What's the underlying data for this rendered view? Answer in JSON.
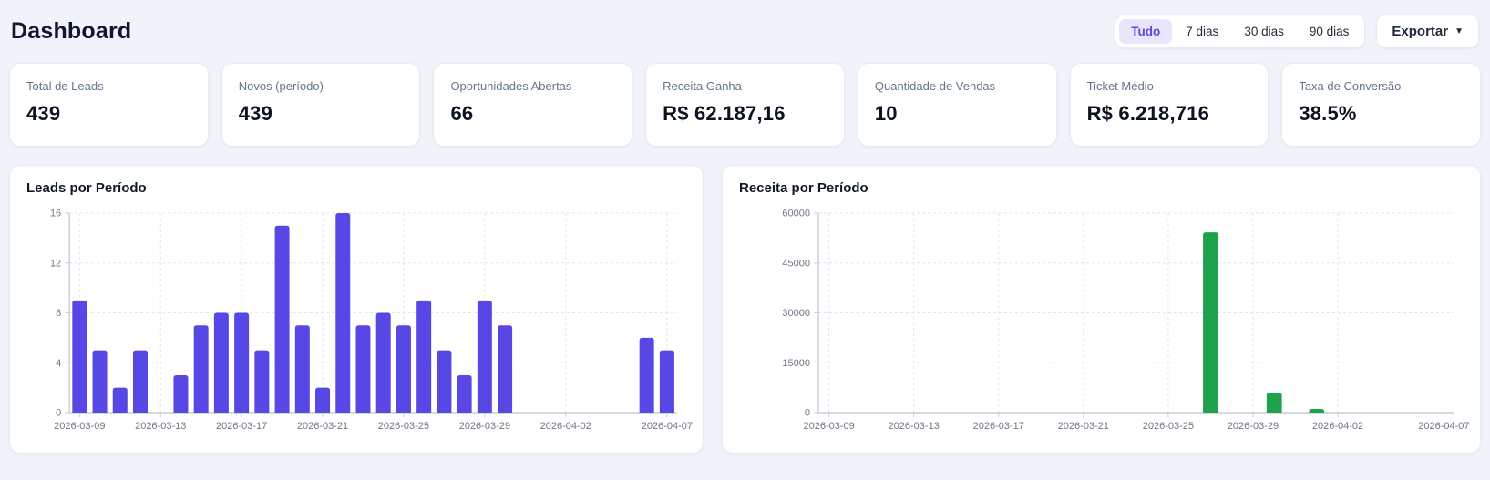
{
  "page": {
    "title": "Dashboard"
  },
  "header": {
    "filters": [
      {
        "label": "Tudo",
        "active": true
      },
      {
        "label": "7 dias",
        "active": false
      },
      {
        "label": "30 dias",
        "active": false
      },
      {
        "label": "90 dias",
        "active": false
      }
    ],
    "export_label": "Exportar",
    "caret_icon": "▼"
  },
  "stats": [
    {
      "label": "Total de Leads",
      "value": "439"
    },
    {
      "label": "Novos (período)",
      "value": "439"
    },
    {
      "label": "Oportunidades Abertas",
      "value": "66"
    },
    {
      "label": "Receita Ganha",
      "value": "R$ 62.187,16"
    },
    {
      "label": "Quantidade de Vendas",
      "value": "10"
    },
    {
      "label": "Ticket Médio",
      "value": "R$ 6.218,716"
    },
    {
      "label": "Taxa de Conversão",
      "value": "38.5%"
    }
  ],
  "colors": {
    "page_bg": "#f1f3fa",
    "accent_purple": "#5748e6",
    "accent_green": "#1fa24c",
    "active_pill_bg": "#e9e6fb",
    "active_pill_text": "#5a49e0",
    "grid_line": "#e1e5f0",
    "axis_line": "#c7cdd9",
    "axis_text": "#6e7687"
  },
  "chart_data": [
    {
      "type": "bar",
      "title": "Leads por Período",
      "categories": [
        "2026-03-09",
        "2026-03-10",
        "2026-03-11",
        "2026-03-12",
        "2026-03-13",
        "2026-03-14",
        "2026-03-15",
        "2026-03-16",
        "2026-03-17",
        "2026-03-18",
        "2026-03-19",
        "2026-03-20",
        "2026-03-21",
        "2026-03-22",
        "2026-03-23",
        "2026-03-24",
        "2026-03-25",
        "2026-03-26",
        "2026-03-27",
        "2026-03-28",
        "2026-03-29",
        "2026-03-30",
        "2026-03-31",
        "2026-04-01",
        "2026-04-02",
        "2026-04-03",
        "2026-04-04",
        "2026-04-05",
        "2026-04-06",
        "2026-04-07"
      ],
      "values": [
        9,
        5,
        2,
        5,
        0,
        3,
        7,
        8,
        8,
        5,
        15,
        7,
        2,
        16,
        7,
        8,
        7,
        9,
        5,
        3,
        9,
        7,
        0,
        0,
        0,
        0,
        0,
        0,
        6,
        5
      ],
      "bar_color": "#5748e6",
      "ylim": [
        0,
        16
      ],
      "yticks": [
        0,
        4,
        8,
        12,
        16
      ],
      "xtick_labels": [
        "2026-03-09",
        "2026-03-13",
        "2026-03-17",
        "2026-03-21",
        "2026-03-25",
        "2026-03-29",
        "2026-04-02",
        "2026-04-07"
      ],
      "xtick_indices": [
        0,
        4,
        8,
        12,
        16,
        20,
        24,
        29
      ],
      "grid": "dashed",
      "legend": "none",
      "xlabel": "",
      "ylabel": ""
    },
    {
      "type": "bar",
      "title": "Receita por Período",
      "categories": [
        "2026-03-09",
        "2026-03-10",
        "2026-03-11",
        "2026-03-12",
        "2026-03-13",
        "2026-03-14",
        "2026-03-15",
        "2026-03-16",
        "2026-03-17",
        "2026-03-18",
        "2026-03-19",
        "2026-03-20",
        "2026-03-21",
        "2026-03-22",
        "2026-03-23",
        "2026-03-24",
        "2026-03-25",
        "2026-03-26",
        "2026-03-27",
        "2026-03-28",
        "2026-03-29",
        "2026-03-30",
        "2026-03-31",
        "2026-04-01",
        "2026-04-02",
        "2026-04-03",
        "2026-04-04",
        "2026-04-05",
        "2026-04-06",
        "2026-04-07"
      ],
      "values": [
        0,
        0,
        0,
        0,
        0,
        0,
        0,
        0,
        0,
        0,
        0,
        0,
        0,
        0,
        0,
        0,
        0,
        0,
        54200,
        0,
        0,
        6000,
        0,
        1100,
        0,
        0,
        0,
        0,
        0,
        0
      ],
      "bar_color": "#1fa24c",
      "ylim": [
        0,
        60000
      ],
      "yticks": [
        0,
        15000,
        30000,
        45000,
        60000
      ],
      "xtick_labels": [
        "2026-03-09",
        "2026-03-13",
        "2026-03-17",
        "2026-03-21",
        "2026-03-25",
        "2026-03-29",
        "2026-04-02",
        "2026-04-07"
      ],
      "xtick_indices": [
        0,
        4,
        8,
        12,
        16,
        20,
        24,
        29
      ],
      "grid": "dashed",
      "legend": "none",
      "xlabel": "",
      "ylabel": ""
    }
  ]
}
